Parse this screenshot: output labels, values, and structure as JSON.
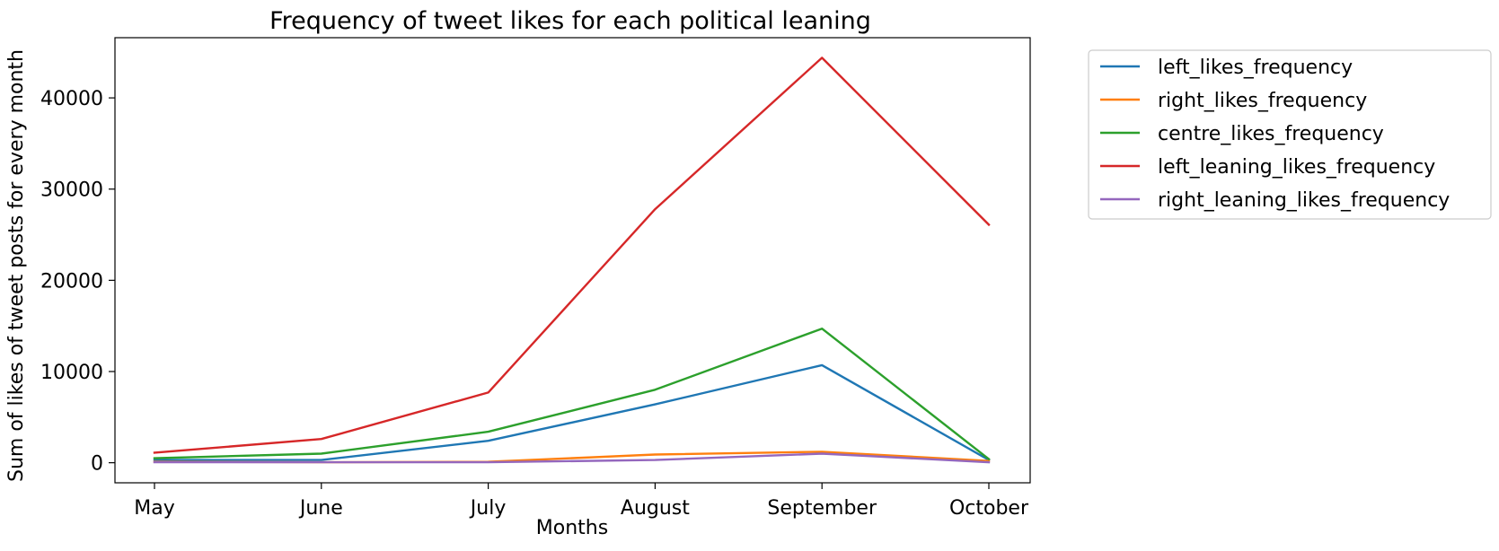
{
  "chart_data": {
    "type": "line",
    "title": "Frequency of tweet likes for each political leaning",
    "xlabel": "Months",
    "ylabel": "Sum of likes of tweet posts for every month",
    "categories": [
      "May",
      "June",
      "July",
      "August",
      "September",
      "October"
    ],
    "yticks": [
      0,
      10000,
      20000,
      30000,
      40000
    ],
    "ytick_labels": [
      "0",
      "10000",
      "20000",
      "30000",
      "40000"
    ],
    "ylim": [
      -2200,
      46600
    ],
    "grid": false,
    "legend_position": "outside-right",
    "series": [
      {
        "name": "left_likes_frequency",
        "color": "#1f77b4",
        "values": [
          300,
          300,
          2400,
          6400,
          10700,
          300
        ]
      },
      {
        "name": "right_likes_frequency",
        "color": "#ff7f0e",
        "values": [
          100,
          50,
          100,
          900,
          1200,
          200
        ]
      },
      {
        "name": "centre_likes_frequency",
        "color": "#2ca02c",
        "values": [
          500,
          1000,
          3400,
          8000,
          14700,
          400
        ]
      },
      {
        "name": "left_leaning_likes_frequency",
        "color": "#d62728",
        "values": [
          1100,
          2600,
          7700,
          27800,
          44400,
          26100
        ]
      },
      {
        "name": "right_leaning_likes_frequency",
        "color": "#9467bd",
        "values": [
          50,
          50,
          50,
          300,
          1000,
          50
        ]
      }
    ]
  }
}
